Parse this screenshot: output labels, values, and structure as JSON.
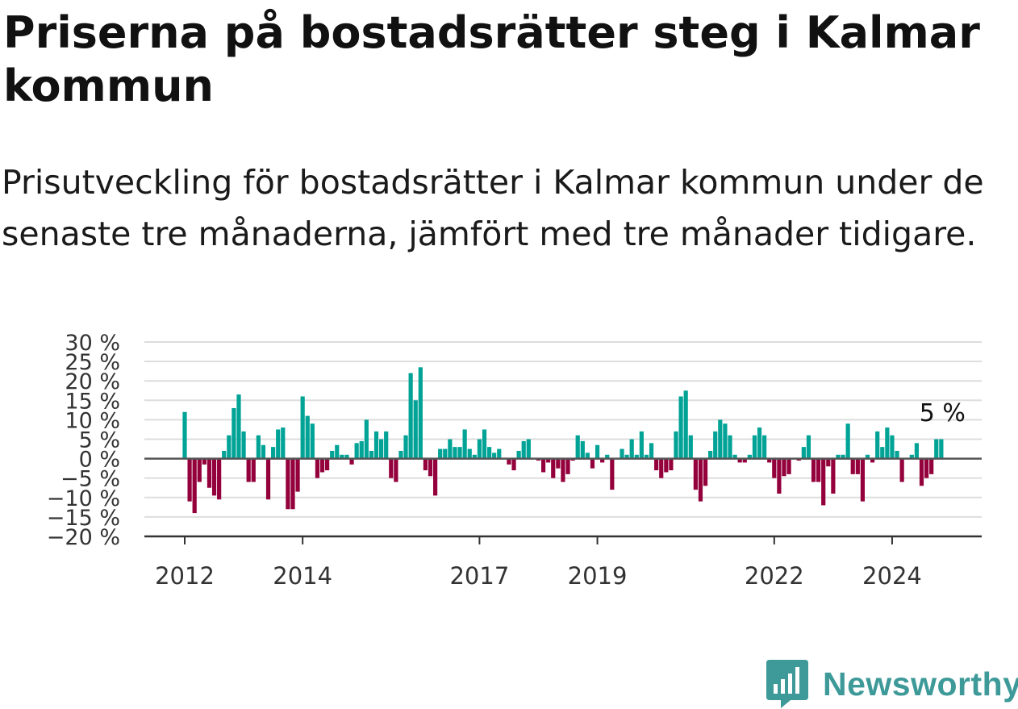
{
  "title": "Priserna på bostadsrätter steg i Kalmar kommun",
  "subtitle": "Prisutveckling för bostadsrätter i Kalmar kommun under de senaste tre månaderna, jämfört med tre månader tidigare.",
  "logo": {
    "text": "Newsworthy",
    "icon": "newsworthy-chart-bubble-icon"
  },
  "colors": {
    "positive": "#00a396",
    "negative": "#94003c",
    "grid": "#dddddd",
    "axis": "#333333",
    "logo": "#3e9a99"
  },
  "chart_data": {
    "type": "bar",
    "x_start": "2012-01",
    "ylim": [
      -20,
      30
    ],
    "y_ticks": [
      {
        "value": 30,
        "label": "30 %"
      },
      {
        "value": 25,
        "label": "25 %"
      },
      {
        "value": 20,
        "label": "20 %"
      },
      {
        "value": 15,
        "label": "15 %"
      },
      {
        "value": 10,
        "label": "10 %"
      },
      {
        "value": 5,
        "label": "5 %"
      },
      {
        "value": 0,
        "label": "0 %"
      },
      {
        "value": -5,
        "label": "−5 %"
      },
      {
        "value": -10,
        "label": "−10 %"
      },
      {
        "value": -15,
        "label": "−15 %"
      },
      {
        "value": -20,
        "label": "−20 %"
      }
    ],
    "x_ticks": [
      {
        "date": "2012-01",
        "label": "2012"
      },
      {
        "date": "2014-01",
        "label": "2014"
      },
      {
        "date": "2017-01",
        "label": "2017"
      },
      {
        "date": "2019-01",
        "label": "2019"
      },
      {
        "date": "2022-01",
        "label": "2022"
      },
      {
        "date": "2024-01",
        "label": "2024"
      }
    ],
    "grid": true,
    "annotation": {
      "label": "5 %"
    },
    "values": [
      12,
      -11,
      -14,
      -6,
      -1.5,
      -7.5,
      -9.5,
      -10.5,
      2,
      6,
      13,
      16.5,
      7,
      -6,
      -6,
      6,
      3.5,
      -10.5,
      3,
      7.5,
      8,
      -13,
      -13,
      -8.5,
      16,
      11,
      9,
      -5,
      -3.5,
      -3,
      2,
      3.5,
      1,
      1,
      -1.5,
      4,
      4.5,
      10,
      2,
      7,
      5,
      7,
      -5,
      -6,
      2,
      6,
      22,
      15,
      23.5,
      -3,
      -4.5,
      -9.5,
      2.5,
      2.5,
      5,
      3,
      3,
      7.5,
      2.5,
      1,
      5,
      7.5,
      3,
      1.5,
      2.5,
      0,
      -1.5,
      -3,
      2,
      4.5,
      5,
      0,
      -0.5,
      -3.5,
      -1,
      -5,
      -2.5,
      -6,
      -4,
      -0.5,
      6,
      4.5,
      1.5,
      -2.5,
      3.5,
      -1,
      1,
      -8,
      0,
      2.5,
      1,
      5,
      1,
      7,
      1,
      4,
      -3,
      -5,
      -3.5,
      -3,
      7,
      16,
      17.5,
      6,
      -8,
      -11,
      -7,
      2,
      7,
      10,
      9,
      6,
      1,
      -1,
      -1,
      1,
      6,
      8,
      6,
      -1,
      -5,
      -9,
      -4.5,
      -4,
      0,
      -0.5,
      3,
      6,
      -6,
      -6,
      -12,
      -2,
      -9,
      1,
      1,
      9,
      -4,
      -4,
      -11,
      1,
      -1,
      7,
      3,
      8,
      6,
      2,
      -6,
      0,
      1,
      4,
      -7,
      -5,
      -4,
      5,
      5
    ]
  }
}
